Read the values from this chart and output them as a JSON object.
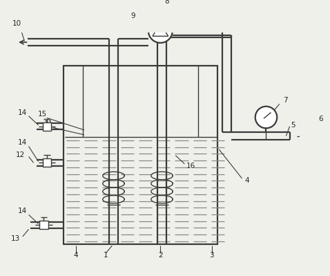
{
  "bg_color": "#f0f0eb",
  "line_color": "#3a3a3a",
  "lw": 1.6,
  "thin_lw": 1.0,
  "figsize": [
    4.78,
    3.99
  ],
  "dpi": 100
}
